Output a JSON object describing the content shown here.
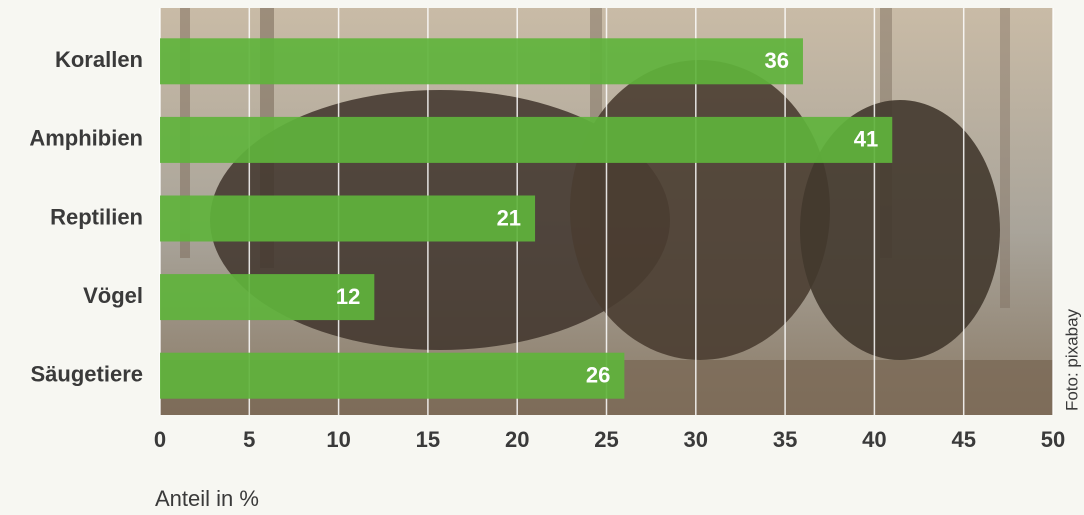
{
  "chart_data": {
    "type": "bar",
    "orientation": "horizontal",
    "categories": [
      "Korallen",
      "Amphibien",
      "Reptilien",
      "Vögel",
      "Säugetiere"
    ],
    "values": [
      36,
      41,
      21,
      12,
      26
    ],
    "color": "#5fb33c",
    "xlim": [
      0,
      50
    ],
    "xticks": [
      0,
      5,
      10,
      15,
      20,
      25,
      30,
      35,
      40,
      45,
      50
    ],
    "xlabel": "Anteil in %",
    "credit": "Foto: pixabay",
    "grid": true
  }
}
